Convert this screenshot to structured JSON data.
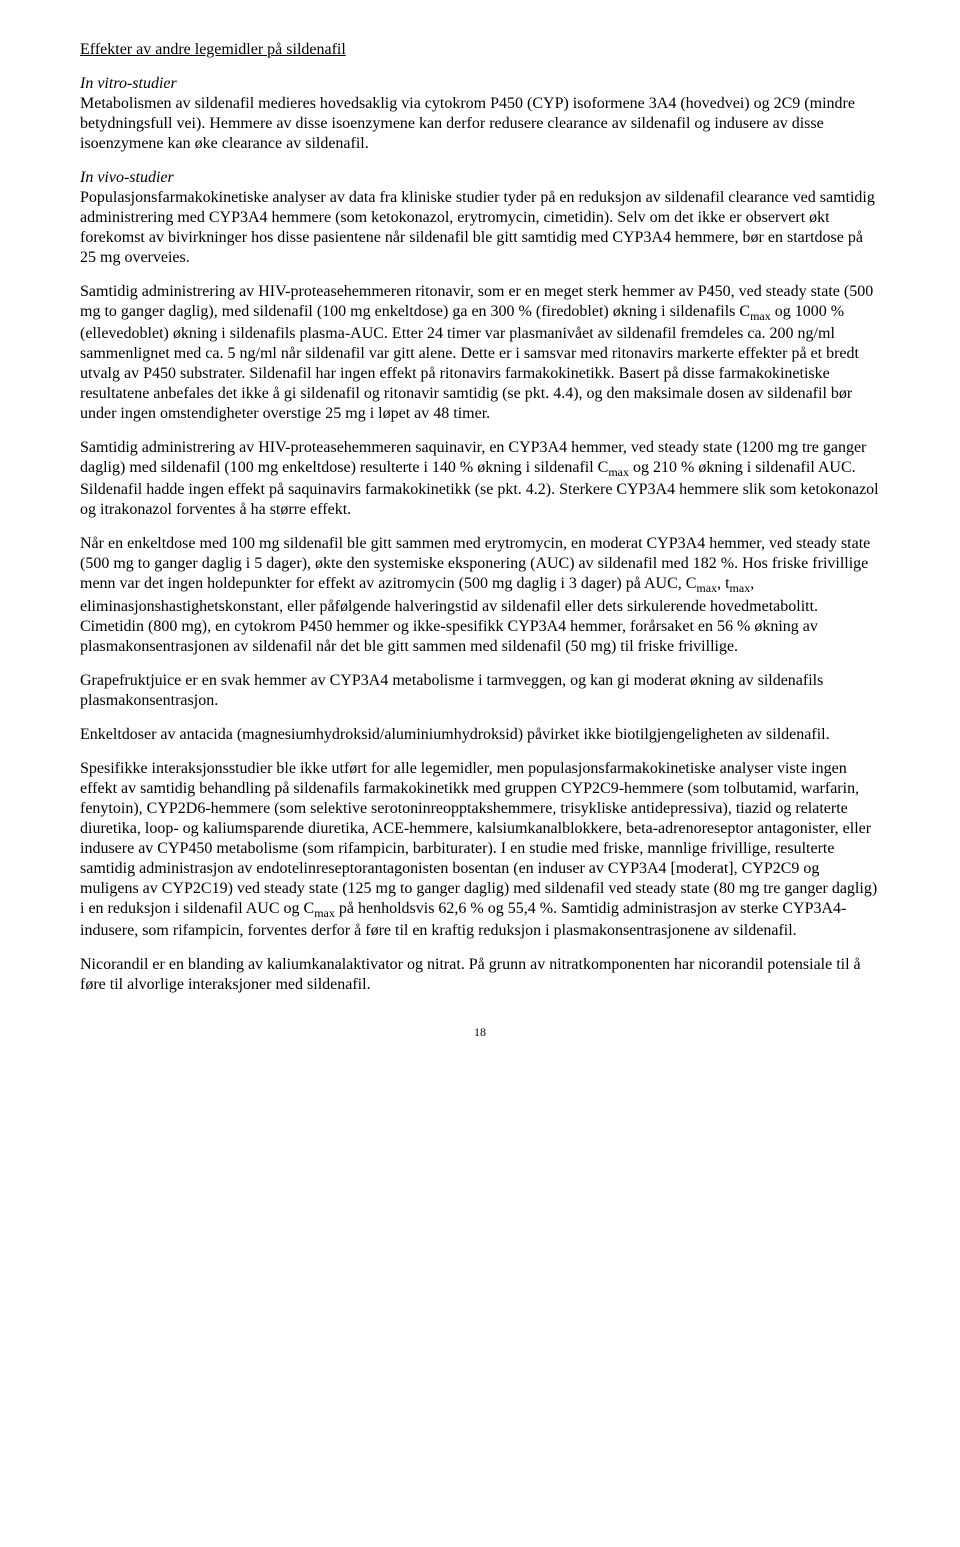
{
  "heading": "Effekter av andre legemidler på sildenafil",
  "p1_label": "In vitro-studier",
  "p1_body": "Metabolismen av sildenafil medieres hovedsaklig via cytokrom P450 (CYP) isoformene 3A4 (hovedvei) og 2C9 (mindre betydningsfull vei). Hemmere av disse isoenzymene kan derfor redusere clearance av sildenafil og indusere av disse isoenzymene kan øke clearance av sildenafil.",
  "p2_label": "In vivo-studier",
  "p2_body": "Populasjonsfarmakokinetiske analyser av data fra kliniske studier tyder på en reduksjon av sildenafil clearance ved samtidig administrering med CYP3A4 hemmere (som ketokonazol, erytromycin, cimetidin). Selv om det ikke er observert økt forekomst av bivirkninger hos disse pasientene når sildenafil ble gitt samtidig med CYP3A4 hemmere, bør en startdose på 25 mg overveies.",
  "p3_a": "Samtidig administrering av HIV-proteasehemmeren ritonavir, som er en meget sterk hemmer av P450, ved steady state (500 mg to ganger daglig), med sildenafil (100 mg enkeltdose) ga en 300 % (firedoblet) økning i sildenafils C",
  "p3_sub1": "max",
  "p3_b": " og 1000 % (ellevedoblet) økning i sildenafils plasma-AUC. Etter 24 timer var plasmanivået av sildenafil fremdeles ca. 200 ng/ml sammenlignet med ca. 5 ng/ml når sildenafil var gitt alene. Dette er i samsvar med ritonavirs markerte effekter på et bredt utvalg av P450 substrater. Sildenafil har ingen effekt på ritonavirs farmakokinetikk. Basert på disse farmakokinetiske resultatene anbefales det ikke å gi sildenafil og ritonavir samtidig (se pkt. 4.4), og den maksimale dosen av sildenafil bør under ingen omstendigheter overstige 25 mg i løpet av 48 timer.",
  "p4_a": "Samtidig administrering av HIV-proteasehemmeren saquinavir, en CYP3A4 hemmer, ved steady state (1200 mg tre ganger daglig) med sildenafil (100 mg enkeltdose) resulterte i 140 % økning i sildenafil C",
  "p4_sub1": "max",
  "p4_b": " og 210 % økning i sildenafil AUC. Sildenafil hadde ingen effekt på saquinavirs farmakokinetikk (se pkt. 4.2). Sterkere CYP3A4 hemmere slik som ketokonazol og itrakonazol forventes å ha større effekt.",
  "p5_a": "Når en enkeltdose med 100 mg sildenafil ble gitt sammen med erytromycin, en moderat CYP3A4 hemmer, ved steady state (500 mg to ganger daglig i 5 dager), økte den systemiske eksponering (AUC) av sildenafil med 182 %. Hos friske frivillige menn var det ingen holdepunkter for effekt av azitromycin (500 mg daglig i 3 dager) på AUC, C",
  "p5_sub1": "max",
  "p5_b": ", t",
  "p5_sub2": "max",
  "p5_c": ", eliminasjonshastighetskonstant, eller påfølgende halveringstid av sildenafil eller dets sirkulerende hovedmetabolitt. Cimetidin (800 mg), en cytokrom P450 hemmer og ikke-spesifikk CYP3A4 hemmer, forårsaket en 56 % økning av plasmakonsentrasjonen av sildenafil når det ble gitt sammen med sildenafil (50 mg) til friske frivillige.",
  "p6": "Grapefruktjuice er en svak hemmer av CYP3A4 metabolisme i tarmveggen, og kan gi moderat økning av sildenafils plasmakonsentrasjon.",
  "p7": "Enkeltdoser av antacida (magnesiumhydroksid/aluminiumhydroksid) påvirket ikke biotilgjengeligheten av sildenafil.",
  "p8_a": "Spesifikke interaksjonsstudier ble ikke utført for alle legemidler, men populasjonsfarmakokinetiske analyser viste ingen effekt av samtidig behandling på sildenafils farmakokinetikk med gruppen CYP2C9-hemmere (som tolbutamid, warfarin, fenytoin), CYP2D6-hemmere (som selektive serotoninreopptakshemmere, trisykliske antidepressiva), tiazid og relaterte diuretika, loop- og kaliumsparende diuretika, ACE-hemmere, kalsiumkanalblokkere, beta-adrenoreseptor antagonister, eller indusere av CYP450 metabolisme (som rifampicin, barbiturater). I en studie med friske, mannlige frivillige, resulterte samtidig administrasjon av endotelinreseptorantagonisten bosentan (en induser av CYP3A4 ",
  "p8_bracket": "[moderat]",
  "p8_b": ", CYP2C9 og muligens av CYP2C19) ved steady state (125 mg to ganger daglig) med sildenafil ved steady state (80 mg tre ganger daglig) i en reduksjon i sildenafil AUC og C",
  "p8_sub1": "max",
  "p8_c": " på henholdsvis 62,6 % og 55,4 %. Samtidig administrasjon av sterke CYP3A4-indusere, som rifampicin, forventes derfor å føre til en kraftig reduksjon i plasmakonsentrasjonene av sildenafil.",
  "p9": "Nicorandil er en blanding av kaliumkanalaktivator og nitrat. På grunn av nitratkomponenten har nicorandil potensiale til å føre til alvorlige interaksjoner med sildenafil.",
  "page_no": "18"
}
